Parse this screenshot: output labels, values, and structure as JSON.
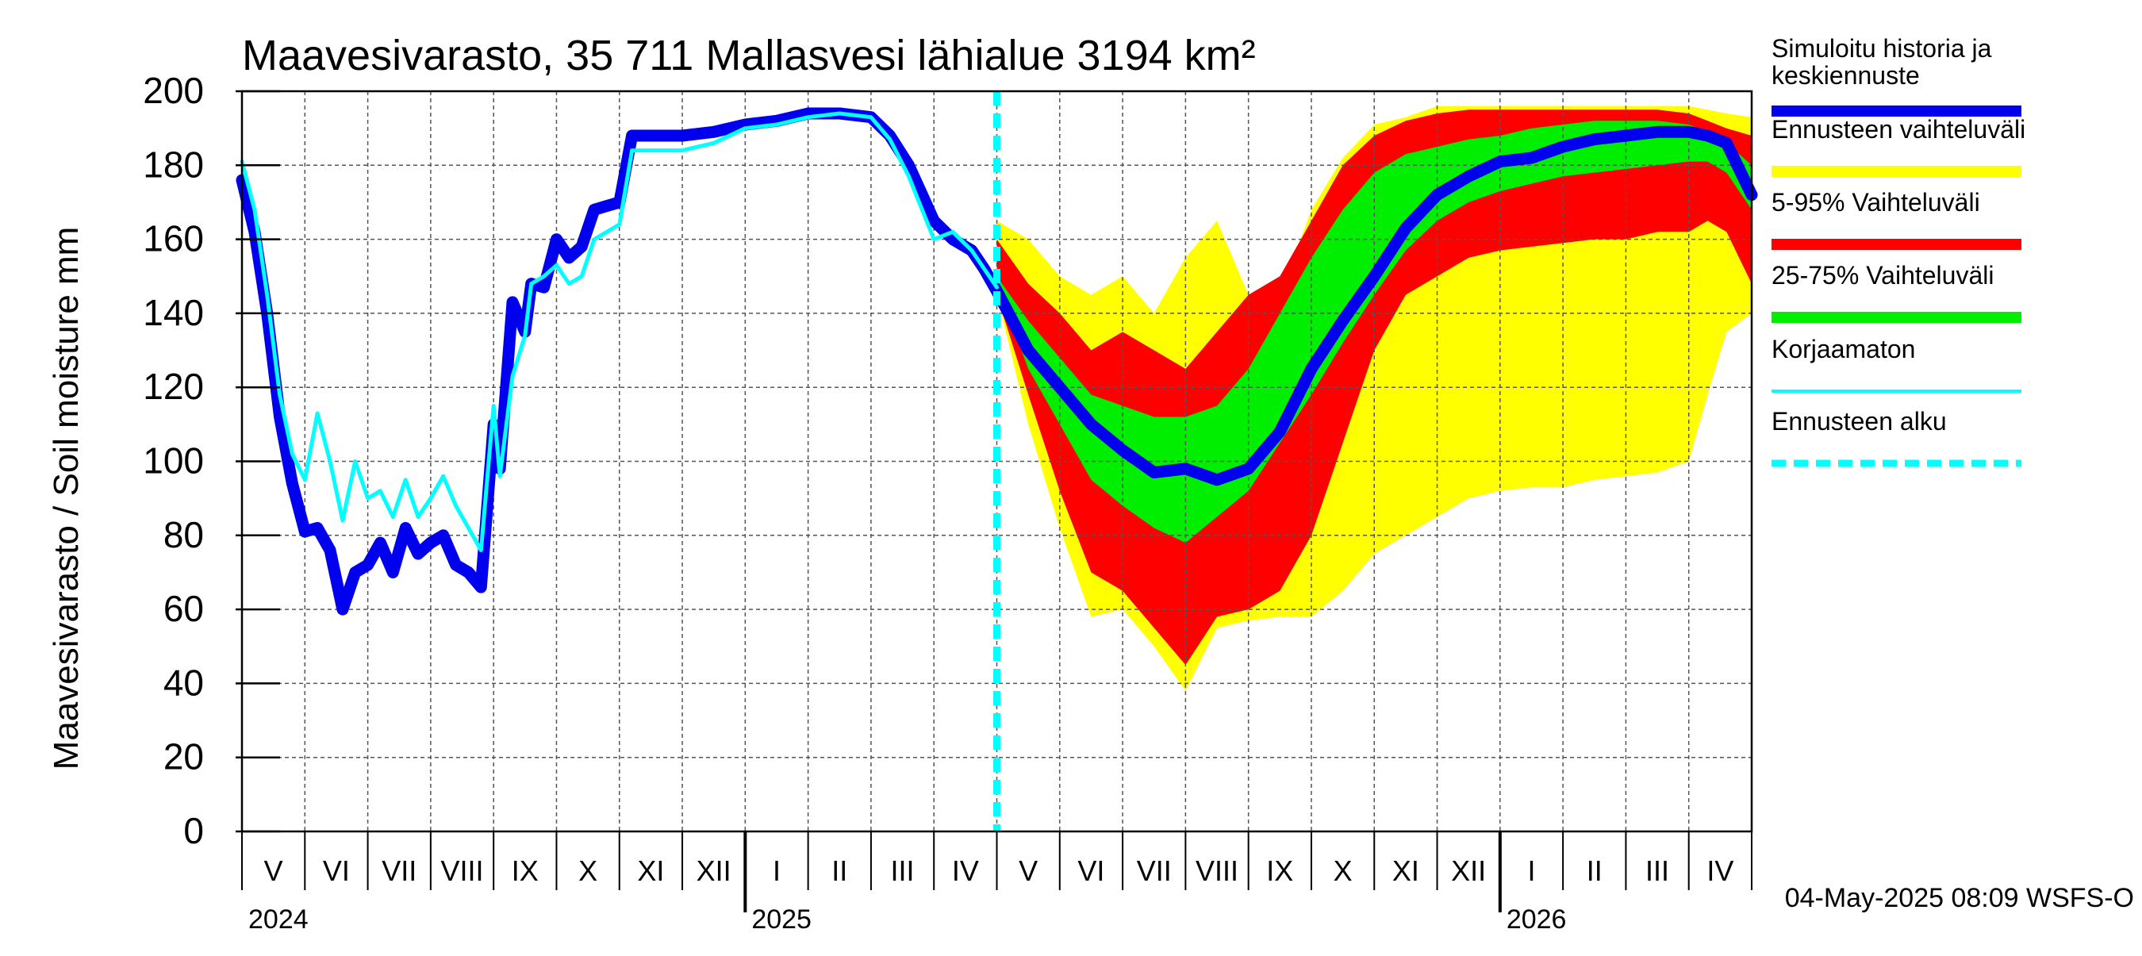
{
  "chart_data": {
    "type": "area",
    "title": "Maavesivarasto, 35 711 Mallasvesi lähialue 3194 km²",
    "ylabel": "Maavesivarasto / Soil moisture   mm",
    "xlabel": "",
    "ylim": [
      0,
      200
    ],
    "y_ticks": [
      "0",
      "20",
      "40",
      "60",
      "80",
      "100",
      "120",
      "140",
      "160",
      "180",
      "200"
    ],
    "grid": true,
    "legend_position": "right",
    "footer": "04-May-2025 08:09 WSFS-O",
    "month_labels": [
      "V",
      "VI",
      "VII",
      "VIII",
      "IX",
      "X",
      "XI",
      "XII",
      "I",
      "II",
      "III",
      "IV",
      "V",
      "VI",
      "VII",
      "VIII",
      "IX",
      "X",
      "XI",
      "XII",
      "I",
      "II",
      "III",
      "IV"
    ],
    "year_labels": [
      "2024",
      "2025",
      "2026"
    ],
    "x_range_months": [
      0,
      24
    ],
    "forecast_start": 12,
    "legend": [
      {
        "label": "Simuloitu historia ja keskiennuste",
        "color": "#0000ee",
        "style": "thick"
      },
      {
        "label": "Ennusteen vaihteluväli",
        "color": "#ffff00",
        "style": "thick"
      },
      {
        "label": "5-95% Vaihteluväli",
        "color": "#ff0000",
        "style": "thick"
      },
      {
        "label": "25-75% Vaihteluväli",
        "color": "#00ee00",
        "style": "thick"
      },
      {
        "label": "Korjaamaton",
        "color": "#00ffff",
        "style": "thin"
      },
      {
        "label": "Ennusteen alku",
        "color": "#00ffff",
        "style": "dashed"
      }
    ],
    "series": [
      {
        "name": "Simuloitu historia ja keskiennuste",
        "color": "#0000ee",
        "x": [
          0,
          0.2,
          0.4,
          0.6,
          0.8,
          1.0,
          1.2,
          1.4,
          1.6,
          1.8,
          2.0,
          2.2,
          2.4,
          2.6,
          2.8,
          3.0,
          3.2,
          3.4,
          3.6,
          3.8,
          4.0,
          4.1,
          4.3,
          4.5,
          4.6,
          4.8,
          5.0,
          5.2,
          5.4,
          5.6,
          5.8,
          6.0,
          6.2,
          6.4,
          6.6,
          6.8,
          7.0,
          7.5,
          8.0,
          8.5,
          9.0,
          9.5,
          10.0,
          10.3,
          10.6,
          11.0,
          11.3,
          11.6,
          11.8,
          12.0,
          12.5,
          13.0,
          13.5,
          14.0,
          14.5,
          15.0,
          15.5,
          16.0,
          16.5,
          17.0,
          17.5,
          18.0,
          18.5,
          19.0,
          19.5,
          20.0,
          20.5,
          21.0,
          21.5,
          22.0,
          22.5,
          23.0,
          23.3,
          23.6,
          24.0
        ],
        "values": [
          176,
          162,
          140,
          112,
          94,
          81,
          82,
          76,
          60,
          70,
          72,
          78,
          70,
          82,
          75,
          78,
          80,
          72,
          70,
          66,
          110,
          98,
          143,
          135,
          148,
          147,
          160,
          155,
          158,
          168,
          169,
          170,
          188,
          188,
          188,
          188,
          188,
          189,
          191,
          192,
          194,
          194,
          193,
          188,
          180,
          165,
          160,
          157,
          152,
          146,
          130,
          120,
          110,
          103,
          97,
          98,
          95,
          98,
          108,
          125,
          138,
          150,
          163,
          172,
          177,
          181,
          182,
          185,
          187,
          188,
          189,
          189,
          188,
          186,
          172
        ]
      },
      {
        "name": "Korjaamaton",
        "color": "#00ffff",
        "x": [
          0,
          0.2,
          0.4,
          0.6,
          0.8,
          1.0,
          1.2,
          1.4,
          1.6,
          1.8,
          2.0,
          2.2,
          2.4,
          2.6,
          2.8,
          3.0,
          3.2,
          3.4,
          3.6,
          3.8,
          4.0,
          4.1,
          4.3,
          4.5,
          4.6,
          4.8,
          5.0,
          5.2,
          5.4,
          5.6,
          5.8,
          6.0,
          6.2,
          6.4,
          6.6,
          6.8,
          7.0,
          7.5,
          8.0,
          8.5,
          9.0,
          9.5,
          10.0,
          10.3,
          10.6,
          11.0,
          11.3,
          11.6,
          11.8,
          12.0
        ],
        "values": [
          181,
          168,
          145,
          118,
          102,
          95,
          113,
          100,
          84,
          100,
          90,
          92,
          85,
          95,
          85,
          90,
          96,
          88,
          82,
          76,
          115,
          96,
          123,
          134,
          148,
          150,
          153,
          148,
          150,
          160,
          162,
          164,
          184,
          184,
          184,
          184,
          184,
          186,
          190,
          191,
          193,
          194,
          193,
          187,
          177,
          160,
          162,
          157,
          152,
          147
        ]
      }
    ],
    "bands": [
      {
        "name": "Ennusteen vaihteluväli",
        "color": "#ffff00",
        "x": [
          12.0,
          12.5,
          13.0,
          13.5,
          14.0,
          14.5,
          15.0,
          15.5,
          16.0,
          16.5,
          17.0,
          17.5,
          18.0,
          18.5,
          19.0,
          19.5,
          20.0,
          20.5,
          21.0,
          21.5,
          22.0,
          22.5,
          23.0,
          23.3,
          23.6,
          24.0
        ],
        "lower": [
          145,
          110,
          82,
          58,
          60,
          50,
          38,
          55,
          57,
          58,
          58,
          65,
          75,
          80,
          85,
          90,
          92,
          93,
          93,
          95,
          96,
          97,
          100,
          118,
          135,
          140
        ],
        "upper": [
          165,
          160,
          150,
          145,
          150,
          140,
          155,
          165,
          145,
          145,
          168,
          182,
          191,
          193,
          196,
          196,
          196,
          196,
          196,
          196,
          196,
          196,
          196,
          195,
          194,
          193
        ]
      },
      {
        "name": "5-95% Vaihteluväli",
        "color": "#ff0000",
        "x": [
          12.0,
          12.5,
          13.0,
          13.5,
          14.0,
          14.5,
          15.0,
          15.5,
          16.0,
          16.5,
          17.0,
          17.5,
          18.0,
          18.5,
          19.0,
          19.5,
          20.0,
          20.5,
          21.0,
          21.5,
          22.0,
          22.5,
          23.0,
          23.3,
          23.6,
          24.0
        ],
        "lower": [
          145,
          118,
          92,
          70,
          65,
          55,
          45,
          58,
          60,
          65,
          80,
          105,
          130,
          145,
          150,
          155,
          157,
          158,
          159,
          160,
          160,
          162,
          162,
          165,
          162,
          148
        ],
        "upper": [
          160,
          148,
          140,
          130,
          135,
          130,
          125,
          135,
          145,
          150,
          165,
          180,
          188,
          192,
          194,
          195,
          195,
          195,
          195,
          195,
          195,
          195,
          194,
          192,
          190,
          188
        ]
      },
      {
        "name": "25-75% Vaihteluväli",
        "color": "#00ee00",
        "x": [
          12.0,
          12.5,
          13.0,
          13.5,
          14.0,
          14.5,
          15.0,
          15.5,
          16.0,
          16.5,
          17.0,
          17.5,
          18.0,
          18.5,
          19.0,
          19.5,
          20.0,
          20.5,
          21.0,
          21.5,
          22.0,
          22.5,
          23.0,
          23.3,
          23.6,
          24.0
        ],
        "lower": [
          148,
          125,
          110,
          95,
          88,
          82,
          78,
          85,
          92,
          105,
          118,
          132,
          145,
          157,
          165,
          170,
          173,
          175,
          177,
          178,
          179,
          180,
          181,
          181,
          178,
          168
        ],
        "upper": [
          150,
          138,
          128,
          118,
          115,
          112,
          112,
          115,
          125,
          140,
          155,
          168,
          178,
          183,
          185,
          187,
          188,
          190,
          191,
          192,
          192,
          192,
          191,
          189,
          186,
          180
        ]
      }
    ]
  }
}
